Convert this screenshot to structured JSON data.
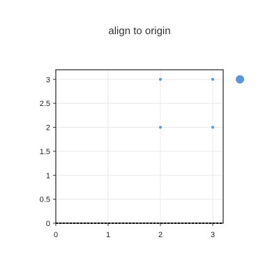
{
  "chart_data": {
    "type": "scatter",
    "title": "align to origin",
    "xlabel": "",
    "ylabel": "",
    "xlim": [
      0,
      3.2
    ],
    "ylim": [
      0,
      3.2
    ],
    "x_ticks": [
      "0",
      "1",
      "2",
      "3"
    ],
    "y_ticks": [
      "0",
      "0.5",
      "1",
      "1.5",
      "2",
      "2.5",
      "3"
    ],
    "grid": true,
    "legend": "right",
    "series": [
      {
        "color": "#5b97d5",
        "points": [
          {
            "x": 2,
            "y": 3
          },
          {
            "x": 3,
            "y": 3
          },
          {
            "x": 2,
            "y": 2
          },
          {
            "x": 3,
            "y": 2
          }
        ]
      }
    ]
  }
}
